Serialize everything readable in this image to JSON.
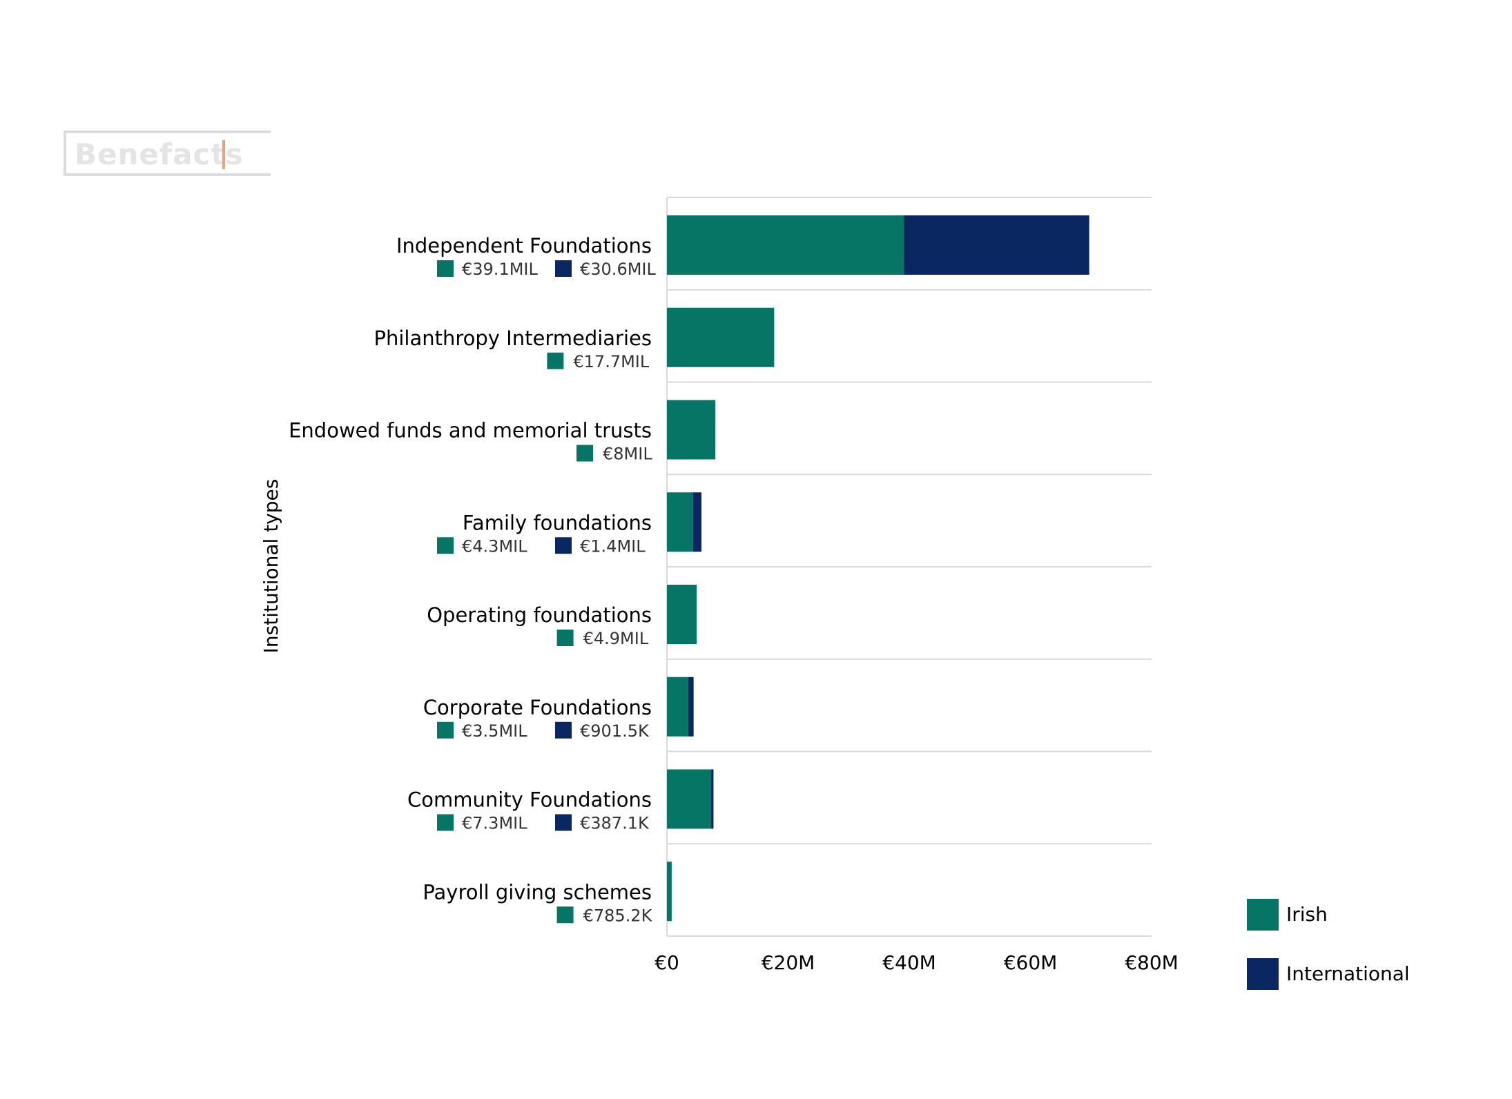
{
  "brand": {
    "logo_text": "Benefacts"
  },
  "colors": {
    "irish": "#067565",
    "international": "#0a2762",
    "grid": "#d9d9d9",
    "text": "#000000"
  },
  "chart_data": {
    "type": "bar",
    "orientation": "horizontal",
    "stacked": true,
    "ylabel": "Institutional types",
    "xlabel": "",
    "xlim": [
      0,
      80000000
    ],
    "xticks": [
      0,
      20000000,
      40000000,
      60000000,
      80000000
    ],
    "xtick_labels": [
      "€0",
      "€20M",
      "€40M",
      "€60M",
      "€80M"
    ],
    "categories": [
      "Independent Foundations",
      "Philanthropy Intermediaries",
      "Endowed funds and memorial trusts",
      "Family foundations",
      "Operating foundations",
      "Corporate Foundations",
      "Community Foundations",
      "Payroll giving schemes"
    ],
    "series": [
      {
        "name": "Irish",
        "color": "#067565",
        "values": [
          39100000,
          17700000,
          8000000,
          4300000,
          4900000,
          3500000,
          7300000,
          785200
        ],
        "labels": [
          "€39.1MIL",
          "€17.7MIL",
          "€8MIL",
          "€4.3MIL",
          "€4.9MIL",
          "€3.5MIL",
          "€7.3MIL",
          "€785.2K"
        ]
      },
      {
        "name": "International",
        "color": "#0a2762",
        "values": [
          30600000,
          0,
          0,
          1400000,
          0,
          901500,
          387100,
          0
        ],
        "labels": [
          "€30.6MIL",
          "",
          "",
          "€1.4MIL",
          "",
          "€901.5K",
          "€387.1K",
          ""
        ]
      }
    ],
    "legend": {
      "position": "bottom-right",
      "entries": [
        "Irish",
        "International"
      ]
    },
    "grid": true
  }
}
